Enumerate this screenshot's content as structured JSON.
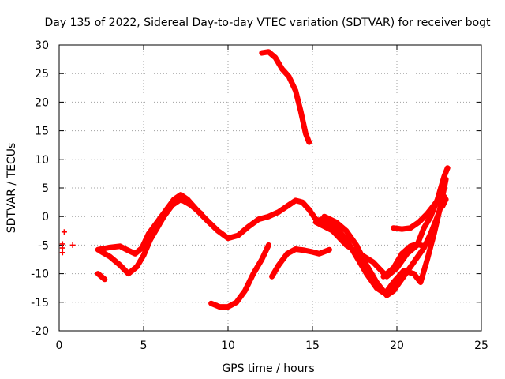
{
  "chart_data": {
    "type": "scatter",
    "title": "Day 135 of 2022, Sidereal Day-to-day VTEC variation (SDTVAR) for receiver bogt",
    "xlabel": "GPS time / hours",
    "ylabel": "SDTVAR / TECUs",
    "xlim": [
      0,
      25
    ],
    "ylim": [
      -20,
      30
    ],
    "xticks": [
      0,
      5,
      10,
      15,
      20,
      25
    ],
    "yticks": [
      -20,
      -15,
      -10,
      -5,
      0,
      5,
      10,
      15,
      20,
      25,
      30
    ],
    "xtick_labels": [
      "0",
      "5",
      "10",
      "15",
      "20",
      "25"
    ],
    "ytick_labels": [
      "-20",
      "-15",
      "-10",
      "-5",
      "0",
      "5",
      "10",
      "15",
      "20",
      "25",
      "30"
    ],
    "grid": true,
    "marker": "plus",
    "color": "#ff0000",
    "series": [
      {
        "name": "track-main-a",
        "points": [
          [
            2.3,
            -5.8
          ],
          [
            3.0,
            -5.4
          ],
          [
            3.6,
            -5.2
          ],
          [
            4.0,
            -5.8
          ],
          [
            4.5,
            -6.5
          ],
          [
            4.9,
            -5.5
          ],
          [
            5.3,
            -3.0
          ],
          [
            5.8,
            -1.0
          ],
          [
            6.3,
            1.0
          ],
          [
            6.8,
            3.0
          ],
          [
            7.2,
            3.8
          ],
          [
            7.6,
            3.0
          ],
          [
            8.2,
            1.0
          ],
          [
            8.8,
            -0.8
          ],
          [
            9.4,
            -2.5
          ],
          [
            10.0,
            -3.8
          ],
          [
            10.6,
            -3.3
          ],
          [
            11.2,
            -1.8
          ],
          [
            11.8,
            -0.5
          ],
          [
            12.4,
            0
          ],
          [
            13.0,
            0.8
          ],
          [
            13.6,
            2.0
          ],
          [
            14.0,
            2.8
          ],
          [
            14.4,
            2.5
          ],
          [
            14.8,
            1.2
          ],
          [
            15.2,
            -0.5
          ],
          [
            15.8,
            -1.2
          ]
        ]
      },
      {
        "name": "track-main-b",
        "points": [
          [
            5.2,
            -5.0
          ],
          [
            5.7,
            -2.5
          ],
          [
            6.2,
            0
          ],
          [
            6.7,
            2.0
          ],
          [
            7.2,
            3.0
          ],
          [
            7.8,
            2.0
          ],
          [
            8.4,
            0.5
          ]
        ]
      },
      {
        "name": "track-early-a",
        "points": [
          [
            2.4,
            -6.0
          ],
          [
            3.0,
            -7.0
          ],
          [
            3.6,
            -8.5
          ],
          [
            4.1,
            -10.0
          ],
          [
            4.6,
            -8.8
          ],
          [
            5.0,
            -6.8
          ],
          [
            5.4,
            -4.0
          ],
          [
            5.9,
            -1.5
          ]
        ]
      },
      {
        "name": "track-early-b",
        "points": [
          [
            2.3,
            -10.0
          ],
          [
            2.7,
            -11.0
          ]
        ]
      },
      {
        "name": "track-high",
        "points": [
          [
            12.0,
            28.6
          ],
          [
            12.4,
            28.8
          ],
          [
            12.8,
            27.8
          ],
          [
            13.2,
            25.8
          ],
          [
            13.6,
            24.5
          ],
          [
            14.0,
            22.0
          ],
          [
            14.3,
            18.5
          ],
          [
            14.6,
            14.5
          ],
          [
            14.8,
            13.0
          ]
        ]
      },
      {
        "name": "track-low-a",
        "points": [
          [
            9.0,
            -15.2
          ],
          [
            9.5,
            -15.8
          ],
          [
            10.0,
            -15.8
          ],
          [
            10.5,
            -15.0
          ],
          [
            11.0,
            -13.0
          ],
          [
            11.5,
            -10.0
          ],
          [
            12.0,
            -7.5
          ],
          [
            12.4,
            -5.0
          ]
        ]
      },
      {
        "name": "track-low-b",
        "points": [
          [
            12.6,
            -10.5
          ],
          [
            13.0,
            -8.5
          ],
          [
            13.5,
            -6.5
          ],
          [
            14.0,
            -5.7
          ],
          [
            14.5,
            -5.9
          ],
          [
            15.0,
            -6.2
          ],
          [
            15.4,
            -6.5
          ],
          [
            16.0,
            -5.8
          ]
        ]
      },
      {
        "name": "track-late-a",
        "points": [
          [
            15.7,
            0
          ],
          [
            16.4,
            -1.0
          ],
          [
            17.0,
            -2.5
          ],
          [
            17.6,
            -5.0
          ],
          [
            18.2,
            -8.5
          ],
          [
            18.8,
            -11.5
          ],
          [
            19.4,
            -13.8
          ],
          [
            19.8,
            -13.0
          ],
          [
            20.4,
            -10.5
          ],
          [
            21.0,
            -8.0
          ],
          [
            21.6,
            -5.5
          ],
          [
            22.0,
            -3.0
          ],
          [
            22.4,
            0
          ],
          [
            22.8,
            3.5
          ]
        ]
      },
      {
        "name": "track-late-b",
        "points": [
          [
            15.5,
            -0.5
          ],
          [
            16.4,
            -2.0
          ],
          [
            17.0,
            -4.0
          ],
          [
            17.6,
            -7.0
          ],
          [
            18.2,
            -10.0
          ],
          [
            18.8,
            -12.5
          ],
          [
            19.3,
            -13.5
          ],
          [
            19.8,
            -11.5
          ],
          [
            20.4,
            -9.5
          ],
          [
            21.0,
            -10.0
          ],
          [
            21.4,
            -11.5
          ],
          [
            21.8,
            -7.5
          ],
          [
            22.2,
            -3.0
          ],
          [
            22.6,
            2.0
          ],
          [
            22.9,
            6.5
          ]
        ]
      },
      {
        "name": "track-late-c",
        "points": [
          [
            15.2,
            -1.0
          ],
          [
            16.2,
            -2.5
          ],
          [
            17.0,
            -5.0
          ],
          [
            17.8,
            -6.5
          ],
          [
            18.6,
            -8.0
          ],
          [
            19.4,
            -10.5
          ],
          [
            20.0,
            -9.0
          ],
          [
            20.6,
            -6.5
          ],
          [
            21.2,
            -5.0
          ],
          [
            21.6,
            -2.0
          ],
          [
            22.0,
            0
          ],
          [
            22.4,
            3.0
          ],
          [
            22.8,
            7.0
          ],
          [
            23.0,
            8.5
          ]
        ]
      },
      {
        "name": "track-late-d",
        "points": [
          [
            19.8,
            -2.0
          ],
          [
            20.3,
            -2.2
          ],
          [
            20.8,
            -2.0
          ],
          [
            21.3,
            -1.0
          ],
          [
            21.8,
            0.5
          ],
          [
            22.2,
            2.0
          ],
          [
            22.6,
            3.5
          ]
        ]
      },
      {
        "name": "track-late-e",
        "points": [
          [
            19.2,
            -10.5
          ],
          [
            19.8,
            -9.0
          ],
          [
            20.3,
            -6.5
          ],
          [
            20.8,
            -5.2
          ],
          [
            21.2,
            -4.8
          ],
          [
            21.6,
            -5.2
          ],
          [
            22.0,
            -4.0
          ]
        ]
      },
      {
        "name": "track-right-edge",
        "points": [
          [
            22.7,
            1.8
          ],
          [
            22.9,
            3.0
          ]
        ]
      }
    ],
    "isolated_points": [
      [
        0.2,
        -4.8
      ],
      [
        0.2,
        -5.5
      ],
      [
        0.2,
        -6.3
      ],
      [
        0.3,
        -2.7
      ],
      [
        0.8,
        -5.0
      ],
      [
        4.0,
        -5.8
      ]
    ]
  }
}
